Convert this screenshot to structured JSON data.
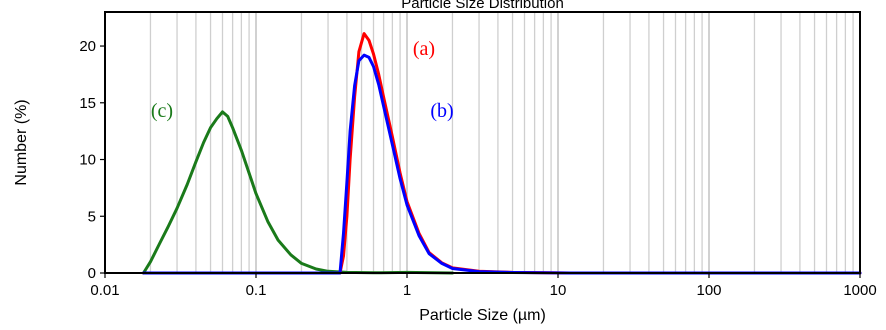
{
  "chart_data": {
    "type": "line",
    "title": "Particle Size Distribution",
    "xlabel": "Particle Size (µm)",
    "ylabel": "Number (%)",
    "x_scale": "log",
    "xlim": [
      0.01,
      1000
    ],
    "ylim": [
      0,
      23
    ],
    "x_ticks": [
      {
        "value": 0.01,
        "label": "0.01"
      },
      {
        "value": 0.1,
        "label": "0.1"
      },
      {
        "value": 1,
        "label": "1"
      },
      {
        "value": 10,
        "label": "10"
      },
      {
        "value": 100,
        "label": "100"
      },
      {
        "value": 1000,
        "label": "1000"
      }
    ],
    "y_ticks": [
      {
        "value": 0,
        "label": "0"
      },
      {
        "value": 5,
        "label": "5"
      },
      {
        "value": 10,
        "label": "10"
      },
      {
        "value": 15,
        "label": "15"
      },
      {
        "value": 20,
        "label": "20"
      }
    ],
    "grid": {
      "vertical": true,
      "horizontal": false
    },
    "series": [
      {
        "name": "(a)",
        "color": "#ff0000",
        "x": [
          0.018,
          0.1,
          0.36,
          0.38,
          0.4,
          0.42,
          0.45,
          0.48,
          0.52,
          0.56,
          0.6,
          0.65,
          0.7,
          0.8,
          0.9,
          1.0,
          1.2,
          1.4,
          1.7,
          2.0,
          3.0,
          5.0,
          12.0,
          1000
        ],
        "y": [
          0.0,
          0.0,
          0.0,
          1.5,
          5.0,
          10.0,
          15.5,
          19.5,
          21.1,
          20.5,
          19.3,
          17.5,
          15.5,
          12.0,
          8.8,
          6.3,
          3.5,
          1.8,
          0.9,
          0.45,
          0.15,
          0.05,
          0.0,
          0.0
        ]
      },
      {
        "name": "(b)",
        "color": "#0000ff",
        "x": [
          0.018,
          0.1,
          0.36,
          0.38,
          0.4,
          0.42,
          0.45,
          0.48,
          0.52,
          0.56,
          0.6,
          0.65,
          0.7,
          0.8,
          0.9,
          1.0,
          1.2,
          1.4,
          1.7,
          2.0,
          3.0,
          5.0,
          12.0,
          1000
        ],
        "y": [
          0.0,
          0.0,
          0.0,
          3.5,
          8.0,
          12.5,
          16.5,
          18.7,
          19.2,
          19.0,
          18.2,
          16.6,
          14.7,
          11.3,
          8.3,
          6.0,
          3.3,
          1.7,
          0.85,
          0.4,
          0.12,
          0.04,
          0.0,
          0.0
        ]
      },
      {
        "name": "(c)",
        "color": "#1a7a1a",
        "x": [
          0.018,
          0.02,
          0.023,
          0.026,
          0.03,
          0.035,
          0.04,
          0.045,
          0.05,
          0.055,
          0.06,
          0.065,
          0.07,
          0.08,
          0.09,
          0.1,
          0.12,
          0.14,
          0.17,
          0.2,
          0.25,
          0.3,
          0.4,
          0.6,
          1.0,
          2.0
        ],
        "y": [
          0.0,
          1.0,
          2.6,
          4.0,
          5.7,
          7.8,
          9.8,
          11.5,
          12.8,
          13.6,
          14.2,
          13.8,
          12.8,
          10.8,
          8.8,
          7.0,
          4.5,
          2.9,
          1.6,
          0.85,
          0.35,
          0.15,
          0.05,
          0.02,
          0.05,
          0.0
        ]
      }
    ]
  }
}
